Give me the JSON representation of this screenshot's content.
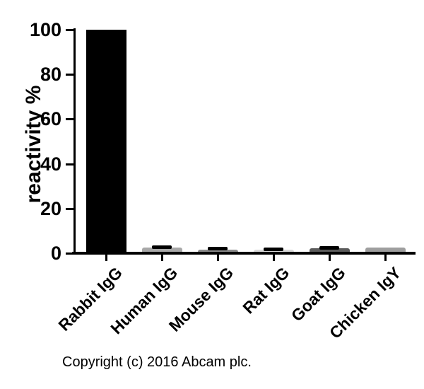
{
  "figure": {
    "background": "#ffffff",
    "axis_color": "#000000",
    "text_color": "#000000"
  },
  "chart_data": {
    "type": "bar",
    "title": "",
    "xlabel": "",
    "ylabel": "reactivity %",
    "ylim": [
      0,
      100
    ],
    "yticks": [
      "0",
      "20",
      "40",
      "60",
      "80",
      "100"
    ],
    "grid": false,
    "legend_position": "none",
    "categories": [
      "Rabbit IgG",
      "Human IgG",
      "Mouse IgG",
      "Rat IgG",
      "Goat IgG",
      "Chicken IgY"
    ],
    "series": [
      {
        "name": "reactivity %",
        "values": [
          100,
          2.6,
          1.6,
          1.7,
          2.2,
          2.5
        ],
        "error_high": [
          null,
          3.6,
          2.7,
          2.5,
          3.3,
          null
        ]
      }
    ],
    "bar_colors": [
      "#000000",
      "#a8a8a8",
      "#8a8a8a",
      "#d9d9d9",
      "#5b5b5b",
      "#9e9e9e"
    ],
    "error_color": "#000000"
  },
  "footer": {
    "copyright": "Copyright (c) 2016 Abcam plc."
  }
}
